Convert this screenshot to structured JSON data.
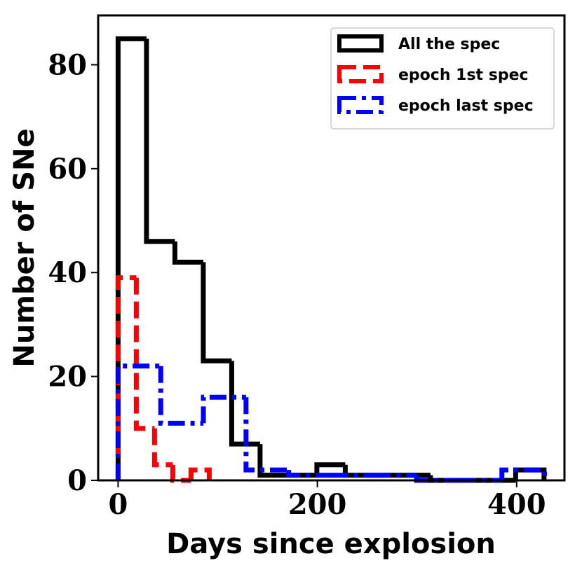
{
  "chart_data": {
    "type": "histogram",
    "xlabel": "Days since explosion",
    "ylabel": "Number of SNe",
    "xlim": [
      -20,
      448
    ],
    "ylim": [
      0,
      89.5
    ],
    "xticks": [
      0,
      200,
      400
    ],
    "yticks": [
      0,
      20,
      40,
      60,
      80
    ],
    "legend": "upper right",
    "series": [
      {
        "name": "All the spec",
        "color": "#000000",
        "linestyle": "solid",
        "bins": [
          0,
          28.5,
          57,
          85.5,
          114,
          142.5,
          171,
          199.5,
          228,
          256.5,
          285,
          313.5,
          342,
          370.5,
          399,
          427.5
        ],
        "values": [
          85,
          46,
          42,
          23,
          7,
          1,
          1,
          3,
          1,
          1,
          1,
          0,
          0,
          0,
          2
        ]
      },
      {
        "name": "epoch 1st spec",
        "color": "#ff0000",
        "linestyle": "dashed",
        "bins": [
          0,
          18.3,
          36.6,
          54.9,
          73.2,
          91.5
        ],
        "values": [
          39,
          10,
          3,
          0,
          2
        ]
      },
      {
        "name": "epoch last spec",
        "color": "#0000ff",
        "linestyle": "dashdot",
        "bins": [
          0,
          42.8,
          85.6,
          128.4,
          171.2,
          214,
          256.8,
          299.6,
          342.4,
          385.2,
          428
        ],
        "values": [
          22,
          11,
          16,
          2,
          1,
          1,
          1,
          0,
          0,
          2
        ]
      }
    ]
  }
}
